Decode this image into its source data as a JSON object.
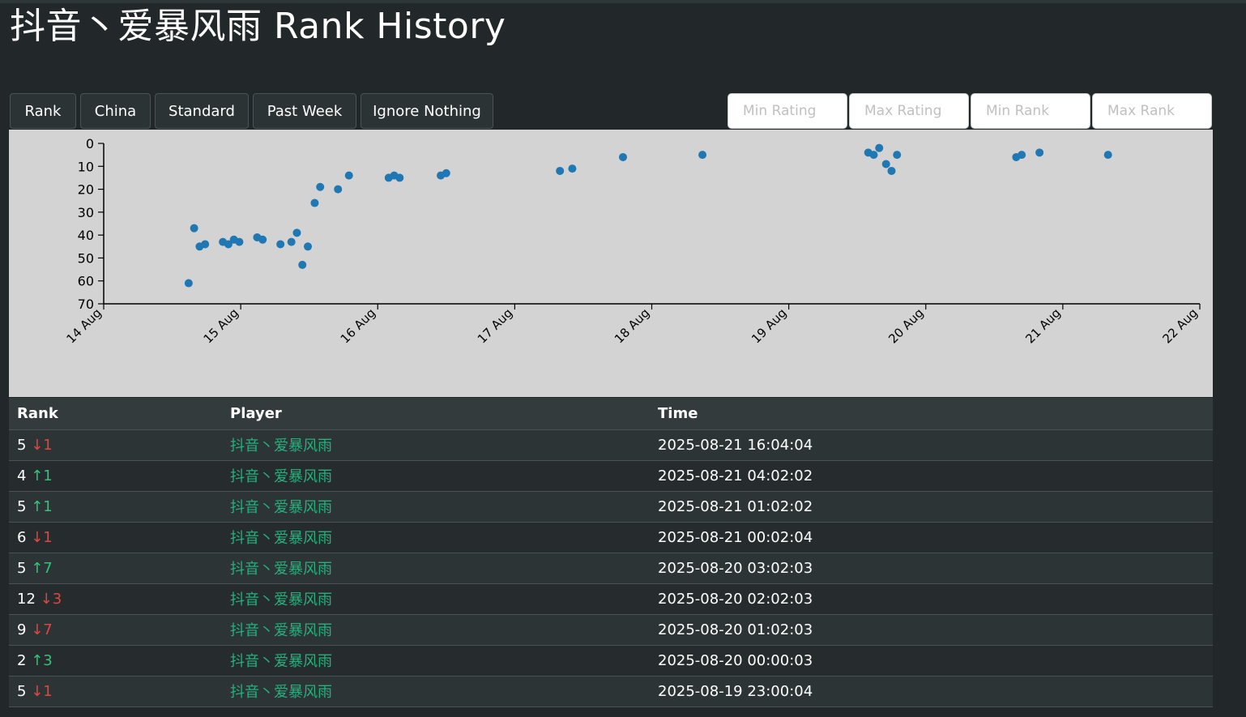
{
  "page": {
    "title": "抖音丶爱暴风雨 Rank History"
  },
  "buttons": [
    {
      "label": "Rank"
    },
    {
      "label": "China"
    },
    {
      "label": "Standard"
    },
    {
      "label": "Past Week"
    },
    {
      "label": "Ignore Nothing"
    }
  ],
  "filters": [
    {
      "placeholder": "Min Rating"
    },
    {
      "placeholder": "Max Rating"
    },
    {
      "placeholder": "Min Rank"
    },
    {
      "placeholder": "Max Rank"
    }
  ],
  "colors": {
    "point": "#1f77b4",
    "rank_down": "#e0463f",
    "rank_up": "#34c27a",
    "player": "#25b07c"
  },
  "chart_data": {
    "type": "scatter",
    "x_axis": {
      "ticks": [
        "14 Aug",
        "15 Aug",
        "16 Aug",
        "17 Aug",
        "18 Aug",
        "19 Aug",
        "20 Aug",
        "21 Aug",
        "22 Aug"
      ],
      "domain_days": [
        14,
        22
      ]
    },
    "y_axis": {
      "ticks": [
        0,
        10,
        20,
        30,
        40,
        50,
        60,
        70
      ],
      "ylim": [
        0,
        70
      ],
      "inverted": true
    },
    "grid": false,
    "points": [
      {
        "x": 14.62,
        "y": 61
      },
      {
        "x": 14.66,
        "y": 37
      },
      {
        "x": 14.7,
        "y": 45
      },
      {
        "x": 14.74,
        "y": 44
      },
      {
        "x": 14.87,
        "y": 43
      },
      {
        "x": 14.91,
        "y": 44
      },
      {
        "x": 14.95,
        "y": 42
      },
      {
        "x": 14.99,
        "y": 43
      },
      {
        "x": 15.12,
        "y": 41
      },
      {
        "x": 15.16,
        "y": 42
      },
      {
        "x": 15.29,
        "y": 44
      },
      {
        "x": 15.37,
        "y": 43
      },
      {
        "x": 15.41,
        "y": 39
      },
      {
        "x": 15.45,
        "y": 53
      },
      {
        "x": 15.49,
        "y": 45
      },
      {
        "x": 15.54,
        "y": 26
      },
      {
        "x": 15.58,
        "y": 19
      },
      {
        "x": 15.71,
        "y": 20
      },
      {
        "x": 15.79,
        "y": 14
      },
      {
        "x": 16.08,
        "y": 15
      },
      {
        "x": 16.12,
        "y": 14
      },
      {
        "x": 16.16,
        "y": 15
      },
      {
        "x": 16.46,
        "y": 14
      },
      {
        "x": 16.5,
        "y": 13
      },
      {
        "x": 17.33,
        "y": 12
      },
      {
        "x": 17.42,
        "y": 11
      },
      {
        "x": 17.79,
        "y": 6
      },
      {
        "x": 18.37,
        "y": 5
      },
      {
        "x": 19.58,
        "y": 4
      },
      {
        "x": 19.62,
        "y": 5
      },
      {
        "x": 19.66,
        "y": 2
      },
      {
        "x": 19.71,
        "y": 9
      },
      {
        "x": 19.75,
        "y": 12
      },
      {
        "x": 19.79,
        "y": 5
      },
      {
        "x": 20.66,
        "y": 6
      },
      {
        "x": 20.7,
        "y": 5
      },
      {
        "x": 20.83,
        "y": 4
      },
      {
        "x": 21.33,
        "y": 5
      }
    ]
  },
  "table": {
    "headers": [
      "Rank",
      "Player",
      "Time"
    ],
    "rows": [
      {
        "rank": "5",
        "arrow": "↓",
        "change": "1",
        "dir": "down",
        "player": "抖音丶爱暴风雨",
        "time": "2025-08-21 16:04:04"
      },
      {
        "rank": "4",
        "arrow": "↑",
        "change": "1",
        "dir": "up",
        "player": "抖音丶爱暴风雨",
        "time": "2025-08-21 04:02:02"
      },
      {
        "rank": "5",
        "arrow": "↑",
        "change": "1",
        "dir": "up",
        "player": "抖音丶爱暴风雨",
        "time": "2025-08-21 01:02:02"
      },
      {
        "rank": "6",
        "arrow": "↓",
        "change": "1",
        "dir": "down",
        "player": "抖音丶爱暴风雨",
        "time": "2025-08-21 00:02:04"
      },
      {
        "rank": "5",
        "arrow": "↑",
        "change": "7",
        "dir": "up",
        "player": "抖音丶爱暴风雨",
        "time": "2025-08-20 03:02:03"
      },
      {
        "rank": "12",
        "arrow": "↓",
        "change": "3",
        "dir": "down",
        "player": "抖音丶爱暴风雨",
        "time": "2025-08-20 02:02:03"
      },
      {
        "rank": "9",
        "arrow": "↓",
        "change": "7",
        "dir": "down",
        "player": "抖音丶爱暴风雨",
        "time": "2025-08-20 01:02:03"
      },
      {
        "rank": "2",
        "arrow": "↑",
        "change": "3",
        "dir": "up",
        "player": "抖音丶爱暴风雨",
        "time": "2025-08-20 00:00:03"
      },
      {
        "rank": "5",
        "arrow": "↓",
        "change": "1",
        "dir": "down",
        "player": "抖音丶爱暴风雨",
        "time": "2025-08-19 23:00:04"
      }
    ]
  }
}
